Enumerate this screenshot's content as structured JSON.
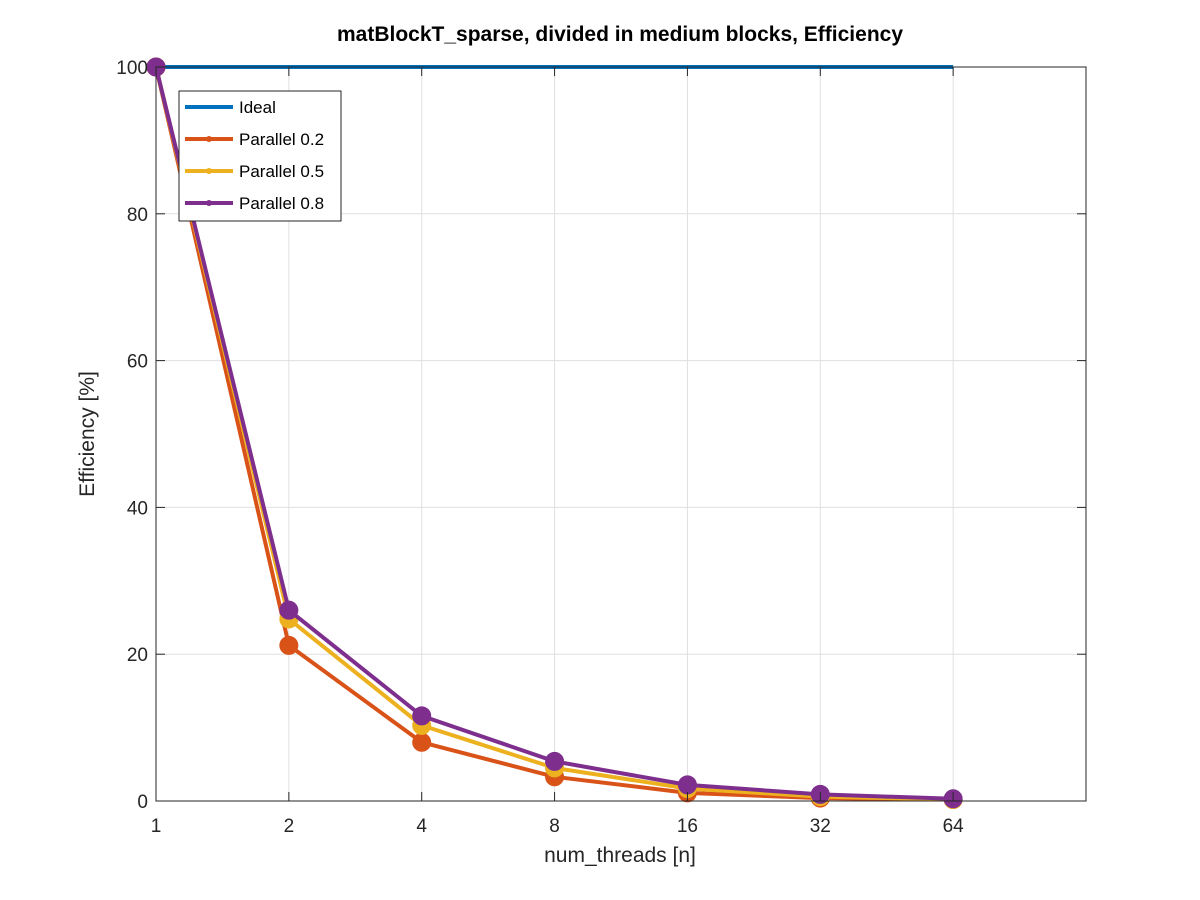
{
  "chart_data": {
    "type": "line",
    "title": "matBlockT_sparse, divided in medium blocks, Efficiency",
    "xlabel": "num_threads [n]",
    "ylabel": "Efficiency [%]",
    "x_scale": "log2",
    "x": [
      1,
      2,
      4,
      8,
      16,
      32,
      64
    ],
    "x_tick_labels": [
      "1",
      "2",
      "4",
      "8",
      "16",
      "32",
      "64"
    ],
    "xlim": [
      1,
      128
    ],
    "ylim": [
      0,
      100
    ],
    "y_ticks": [
      0,
      20,
      40,
      60,
      80,
      100
    ],
    "y_tick_labels": [
      "0",
      "20",
      "40",
      "60",
      "80",
      "100"
    ],
    "grid": true,
    "legend_position": "top-left",
    "series": [
      {
        "name": "Ideal",
        "color": "#0072BD",
        "markers": false,
        "values": [
          100,
          100,
          100,
          100,
          100,
          100,
          100
        ]
      },
      {
        "name": "Parallel 0.2",
        "color": "#D95319",
        "markers": true,
        "values": [
          100,
          21.2,
          8.0,
          3.3,
          1.1,
          0.4,
          0.2
        ]
      },
      {
        "name": "Parallel 0.5",
        "color": "#EDB120",
        "markers": true,
        "values": [
          100,
          24.8,
          10.3,
          4.5,
          1.7,
          0.6,
          0.2
        ]
      },
      {
        "name": "Parallel 0.8",
        "color": "#7E2F8E",
        "markers": true,
        "values": [
          100,
          26.0,
          11.6,
          5.4,
          2.2,
          0.9,
          0.3
        ]
      }
    ]
  }
}
